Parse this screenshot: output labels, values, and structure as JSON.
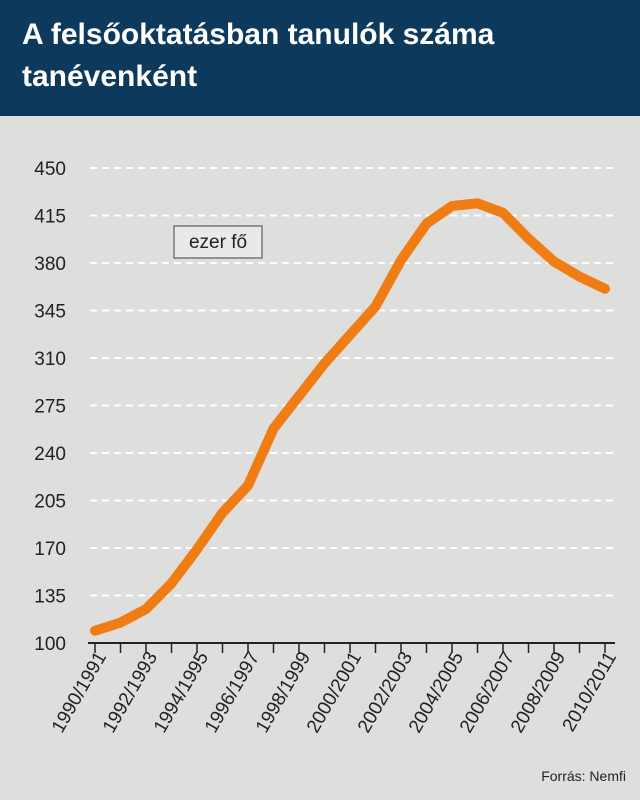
{
  "header": {
    "title": "A felsőoktatásban tanulók száma tanévenként"
  },
  "source": "Forrás: Nemfi",
  "colors": {
    "header_bg": "#0d3a5c",
    "background": "#dededd",
    "line": "#f07c14",
    "grid": "#ffffff"
  },
  "chart_data": {
    "type": "line",
    "unit_label": "ezer fő",
    "title": "A felsőoktatásban tanulók száma tanévenként",
    "xlabel": "",
    "ylabel": "",
    "ylim": [
      100,
      450
    ],
    "yticks": [
      100,
      135,
      170,
      205,
      240,
      275,
      310,
      345,
      380,
      415,
      450
    ],
    "grid": true,
    "x": [
      "1990/1991",
      "1991/1992",
      "1992/1993",
      "1993/1994",
      "1994/1995",
      "1995/1996",
      "1996/1997",
      "1997/1998",
      "1998/1999",
      "1999/2000",
      "2000/2001",
      "2001/2002",
      "2002/2003",
      "2003/2004",
      "2004/2005",
      "2005/2006",
      "2006/2007",
      "2007/2008",
      "2008/2009",
      "2009/2010",
      "2010/2011"
    ],
    "xtick_labels": [
      "1990/1991",
      "1992/1993",
      "1994/1995",
      "1996/1997",
      "1998/1999",
      "2000/2001",
      "2002/2003",
      "2004/2005",
      "2006/2007",
      "2008/2009",
      "2010/2011"
    ],
    "series": [
      {
        "values": [
          109,
          115,
          125,
          144,
          169,
          196,
          216,
          258,
          282,
          306,
          327,
          348,
          382,
          409,
          422,
          424,
          417,
          398,
          381,
          370,
          361
        ]
      }
    ]
  }
}
